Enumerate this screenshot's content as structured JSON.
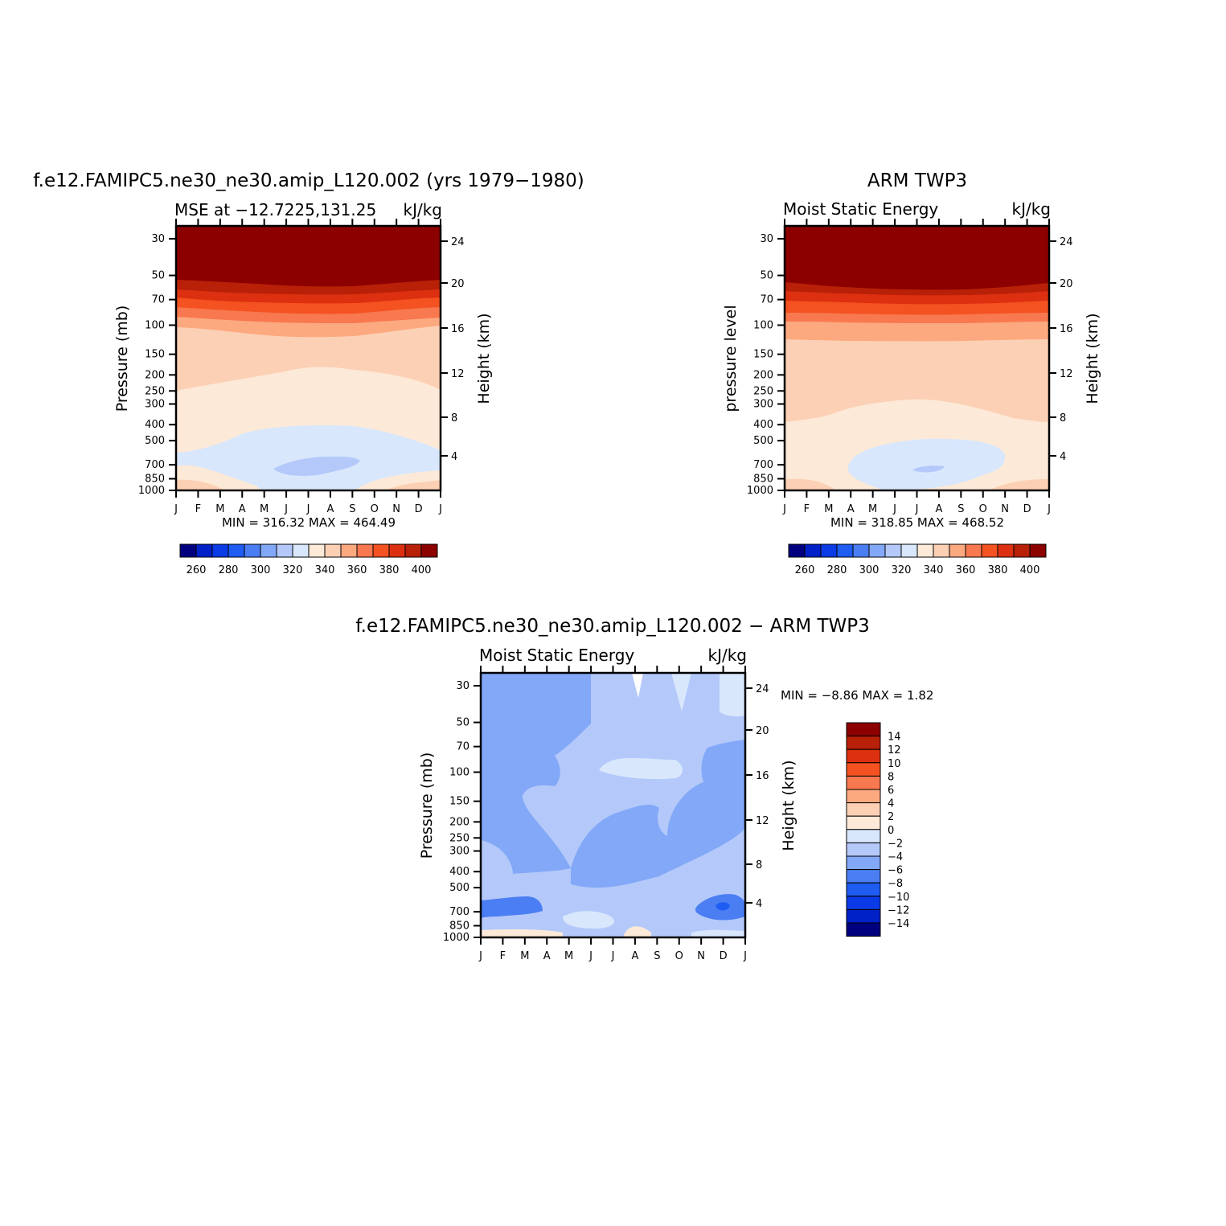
{
  "colors": {
    "palette": [
      "#00007f",
      "#0020c8",
      "#0a3be6",
      "#1e5cf2",
      "#4b7ef3",
      "#82a8f7",
      "#b4c9fa",
      "#d8e7fc",
      "#fde9d7",
      "#fcd0b5",
      "#fca97f",
      "#f8784f",
      "#f45221",
      "#dd3010",
      "#b82008",
      "#8c0000"
    ]
  },
  "panels": {
    "left": {
      "title": "f.e12.FAMIPC5.ne30_ne30.amip_L120.002 (yrs 1979−1980)",
      "left_string": "MSE at −12.7225,131.25",
      "right_string": "kJ/kg",
      "ylabel": "Pressure (mb)",
      "y2label": "Height (km)",
      "minmax": "MIN = 316.32 MAX = 464.49"
    },
    "right": {
      "title": "ARM TWP3",
      "left_string": "Moist Static Energy",
      "right_string": "kJ/kg",
      "ylabel": "pressure level",
      "y2label": "Height (km)",
      "minmax": "MIN = 318.85 MAX = 468.52"
    },
    "diff": {
      "title": "f.e12.FAMIPC5.ne30_ne30.amip_L120.002 − ARM TWP3",
      "left_string": "Moist Static Energy",
      "right_string": "kJ/kg",
      "ylabel": "Pressure (mb)",
      "y2label": "Height (km)",
      "minmax": "MIN =   −8.86 MAX =    1.82"
    }
  },
  "chart_data": [
    {
      "type": "heatmap",
      "panel": "left",
      "x_ticks": [
        "J",
        "F",
        "M",
        "A",
        "M",
        "J",
        "J",
        "A",
        "S",
        "O",
        "N",
        "D",
        "J"
      ],
      "y_ticks": [
        "30",
        "50",
        "70",
        "100",
        "150",
        "200",
        "250",
        "300",
        "400",
        "500",
        "700",
        "850",
        "1000"
      ],
      "y_scale": "log",
      "y2_ticks": [
        "24",
        "20",
        "16",
        "12",
        "8",
        "4"
      ],
      "levels_desc_mb": [
        30,
        50,
        70,
        100,
        150,
        200,
        250,
        300,
        400,
        500,
        700,
        850,
        1000
      ],
      "contour_levels": [
        250,
        260,
        270,
        280,
        290,
        300,
        310,
        320,
        330,
        340,
        350,
        360,
        370,
        380,
        390,
        400
      ],
      "colorbar_labels": [
        "260",
        "280",
        "300",
        "320",
        "340",
        "360",
        "380",
        "400"
      ],
      "min": 316.32,
      "max": 464.49
    },
    {
      "type": "heatmap",
      "panel": "right",
      "x_ticks": [
        "J",
        "F",
        "M",
        "A",
        "M",
        "J",
        "J",
        "A",
        "S",
        "O",
        "N",
        "D",
        "J"
      ],
      "y_ticks": [
        "30",
        "50",
        "70",
        "100",
        "150",
        "200",
        "250",
        "300",
        "400",
        "500",
        "700",
        "850",
        "1000"
      ],
      "y_scale": "log",
      "y2_ticks": [
        "24",
        "20",
        "16",
        "12",
        "8",
        "4"
      ],
      "contour_levels": [
        250,
        260,
        270,
        280,
        290,
        300,
        310,
        320,
        330,
        340,
        350,
        360,
        370,
        380,
        390,
        400
      ],
      "colorbar_labels": [
        "260",
        "280",
        "300",
        "320",
        "340",
        "360",
        "380",
        "400"
      ],
      "min": 318.85,
      "max": 468.52
    },
    {
      "type": "heatmap",
      "panel": "diff",
      "x_ticks": [
        "J",
        "F",
        "M",
        "A",
        "M",
        "J",
        "J",
        "A",
        "S",
        "O",
        "N",
        "D",
        "J"
      ],
      "y_ticks": [
        "30",
        "50",
        "70",
        "100",
        "150",
        "200",
        "250",
        "300",
        "400",
        "500",
        "700",
        "850",
        "1000"
      ],
      "y_scale": "log",
      "y2_ticks": [
        "24",
        "20",
        "16",
        "12",
        "8",
        "4"
      ],
      "contour_levels": [
        -14,
        -12,
        -10,
        -8,
        -6,
        -4,
        -2,
        0,
        2,
        4,
        6,
        8,
        10,
        12,
        14
      ],
      "colorbar_labels": [
        "14",
        "12",
        "10",
        "8",
        "6",
        "4",
        "2",
        "0",
        "−2",
        "−4",
        "−6",
        "−8",
        "−10",
        "−12",
        "−14"
      ],
      "min": -8.86,
      "max": 1.82
    }
  ]
}
